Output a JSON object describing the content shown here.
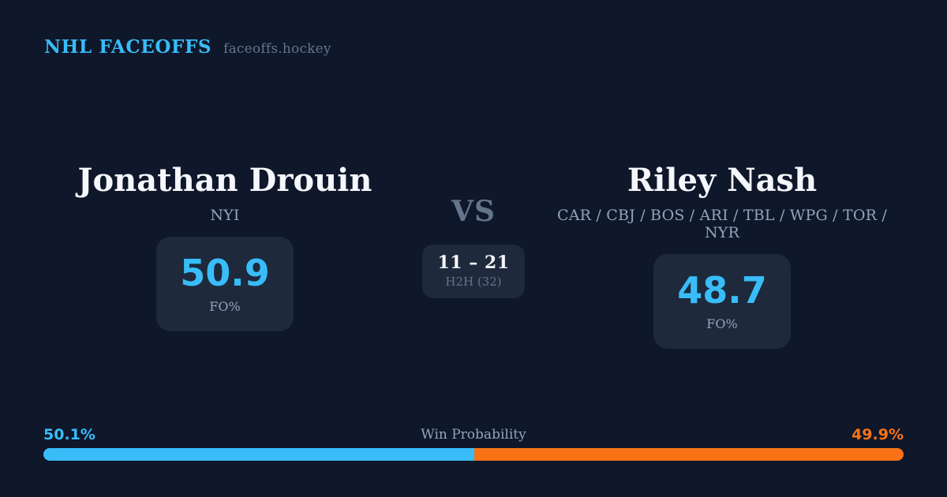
{
  "theme": {
    "background": "#0F172A",
    "card_background": "#1E293B",
    "accent_blue": "#38BDF8",
    "accent_orange": "#F97316",
    "text_primary": "#F4F7FB",
    "text_muted": "#94A3B8",
    "text_faint": "#64748B"
  },
  "header": {
    "brand": "NHL FACEOFFS",
    "site": "faceoffs.hockey"
  },
  "players": {
    "left": {
      "name": "Jonathan Drouin",
      "teams": "NYI",
      "fo_pct": "50.9",
      "stat_label": "FO%"
    },
    "right": {
      "name": "Riley Nash",
      "teams": "CAR / CBJ / BOS / ARI / TBL / WPG / TOR / NYR",
      "fo_pct": "48.7",
      "stat_label": "FO%"
    }
  },
  "center": {
    "vs": "VS",
    "h2h_record": "11 – 21",
    "h2h_label": "H2H (32)"
  },
  "win_probability": {
    "title": "Win Probability",
    "left_label": "50.1%",
    "right_label": "49.9%",
    "left_value": 50.1,
    "right_value": 49.9
  }
}
